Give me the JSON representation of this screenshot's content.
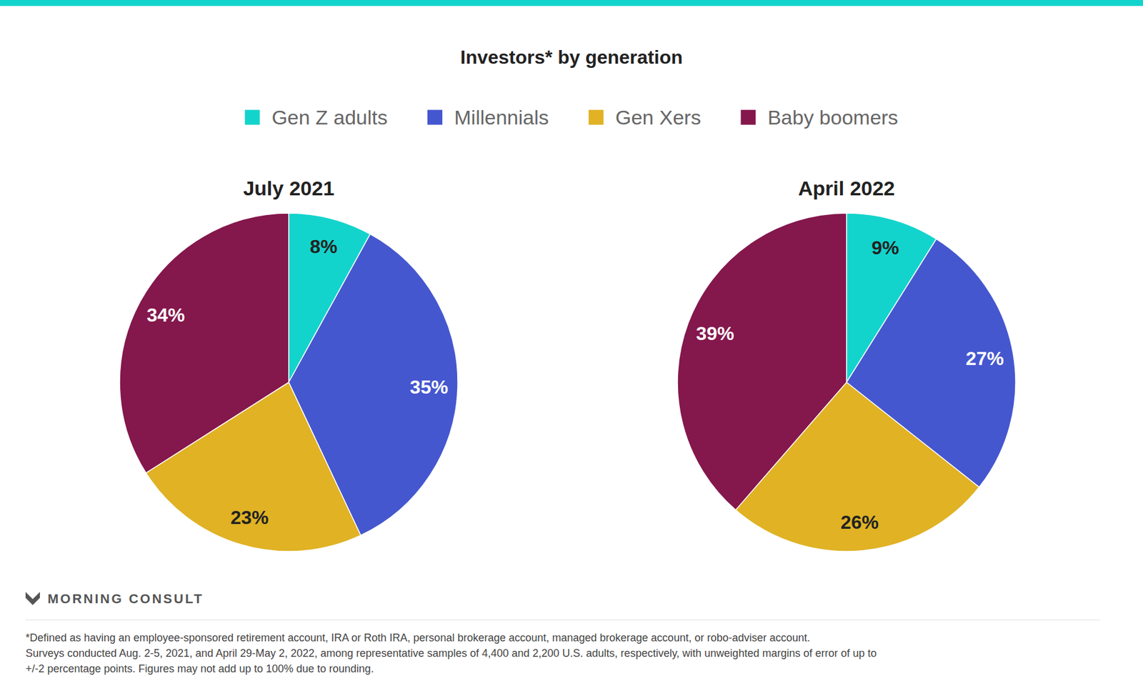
{
  "title": "Investors* by generation",
  "source": "MORNING CONSULT",
  "notes": [
    "*Defined as having an employee-sponsored retirement account, IRA or Roth IRA, personal brokerage account, managed brokerage account, or robo-adviser account.",
    "Surveys conducted Aug. 2-5, 2021, and April 29-May 2, 2022, among representative samples of 4,400 and 2,200 U.S. adults, respectively, with unweighted margins of error of up to",
    "+/-2 percentage points. Figures may not add up to 100% due to rounding."
  ],
  "chart_data": [
    {
      "type": "pie",
      "title": "July 2021",
      "categories": [
        "Gen Z adults",
        "Millennials",
        "Gen Xers",
        "Baby boomers"
      ],
      "values": [
        8,
        35,
        23,
        34
      ],
      "value_labels": [
        "8%",
        "35%",
        "23%",
        "34%"
      ],
      "colors": [
        "#13d4cc",
        "#4557cf",
        "#e0b224",
        "#84174c"
      ],
      "data_labels": true,
      "legend": "top"
    },
    {
      "type": "pie",
      "title": "April 2022",
      "categories": [
        "Gen Z adults",
        "Millennials",
        "Gen Xers",
        "Baby boomers"
      ],
      "values": [
        9,
        27,
        26,
        39
      ],
      "value_labels": [
        "9%",
        "27%",
        "26%",
        "39%"
      ],
      "colors": [
        "#13d4cc",
        "#4557cf",
        "#e0b224",
        "#84174c"
      ],
      "data_labels": true
    }
  ]
}
